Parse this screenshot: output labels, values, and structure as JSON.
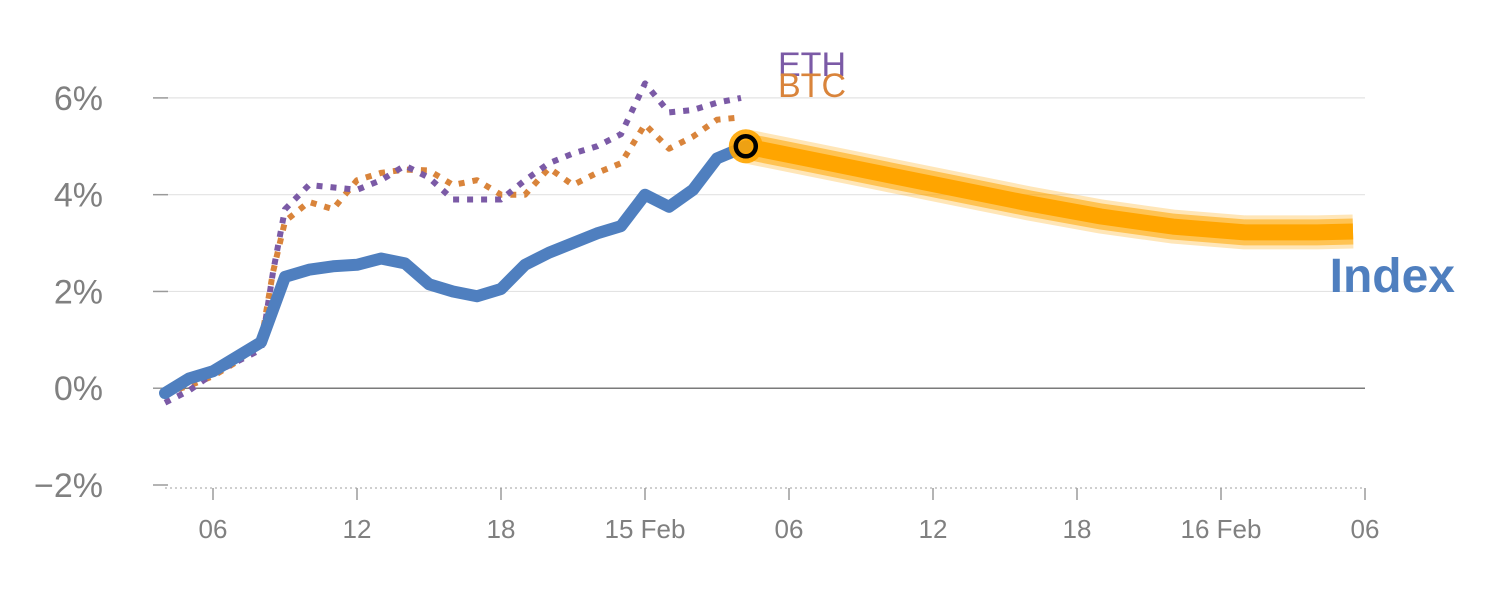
{
  "chart_data": {
    "type": "line",
    "title": "",
    "xlabel": "",
    "ylabel": "",
    "ylim": [
      -2,
      7.3
    ],
    "y_ticks": [
      {
        "value": -2,
        "label": "−2%"
      },
      {
        "value": 0,
        "label": "0%"
      },
      {
        "value": 2,
        "label": "2%"
      },
      {
        "value": 4,
        "label": "4%"
      },
      {
        "value": 6,
        "label": "6%"
      }
    ],
    "x_unit": "hours since 14 Feb 00:00",
    "xlim": [
      4,
      54
    ],
    "x_ticks": [
      {
        "value": 6,
        "label": "06"
      },
      {
        "value": 12,
        "label": "12"
      },
      {
        "value": 18,
        "label": "18"
      },
      {
        "value": 24,
        "label": "15 Feb"
      },
      {
        "value": 30,
        "label": "06"
      },
      {
        "value": 36,
        "label": "12"
      },
      {
        "value": 42,
        "label": "18"
      },
      {
        "value": 48,
        "label": "16 Feb"
      },
      {
        "value": 54,
        "label": "06"
      }
    ],
    "series": [
      {
        "name": "Index",
        "label": "Index",
        "color": "#4f7fbf",
        "style": "solid",
        "points": [
          [
            4.0,
            -0.1
          ],
          [
            5.0,
            0.2
          ],
          [
            6.0,
            0.35
          ],
          [
            7.0,
            0.65
          ],
          [
            8.0,
            0.95
          ],
          [
            9.0,
            2.3
          ],
          [
            10.0,
            2.45
          ],
          [
            11.0,
            2.52
          ],
          [
            12.0,
            2.55
          ],
          [
            13.0,
            2.68
          ],
          [
            14.0,
            2.58
          ],
          [
            15.0,
            2.15
          ],
          [
            16.0,
            2.0
          ],
          [
            17.0,
            1.9
          ],
          [
            18.0,
            2.05
          ],
          [
            19.0,
            2.55
          ],
          [
            20.0,
            2.8
          ],
          [
            21.0,
            3.0
          ],
          [
            22.0,
            3.2
          ],
          [
            23.0,
            3.35
          ],
          [
            24.0,
            4.0
          ],
          [
            25.0,
            3.75
          ],
          [
            26.0,
            4.1
          ],
          [
            27.0,
            4.75
          ],
          [
            28.2,
            5.0
          ]
        ]
      },
      {
        "name": "Forecast",
        "label": "",
        "color": "#ffa500",
        "style": "band",
        "points": [
          [
            28.2,
            5.0
          ],
          [
            31.0,
            4.72
          ],
          [
            34.0,
            4.42
          ],
          [
            37.0,
            4.12
          ],
          [
            40.0,
            3.82
          ],
          [
            43.0,
            3.55
          ],
          [
            46.0,
            3.34
          ],
          [
            49.0,
            3.22
          ],
          [
            52.0,
            3.22
          ],
          [
            53.5,
            3.24
          ]
        ]
      },
      {
        "name": "BTC",
        "label": "BTC",
        "color": "#d9843b",
        "style": "dotted",
        "points": [
          [
            4.0,
            -0.1
          ],
          [
            5.0,
            0.05
          ],
          [
            6.0,
            0.25
          ],
          [
            7.0,
            0.55
          ],
          [
            8.0,
            0.95
          ],
          [
            8.5,
            2.4
          ],
          [
            9.0,
            3.45
          ],
          [
            10.0,
            3.85
          ],
          [
            11.0,
            3.7
          ],
          [
            12.0,
            4.3
          ],
          [
            13.0,
            4.45
          ],
          [
            14.0,
            4.52
          ],
          [
            15.0,
            4.5
          ],
          [
            16.0,
            4.2
          ],
          [
            17.0,
            4.3
          ],
          [
            18.0,
            4.0
          ],
          [
            19.0,
            4.0
          ],
          [
            20.0,
            4.55
          ],
          [
            21.0,
            4.2
          ],
          [
            22.0,
            4.45
          ],
          [
            23.0,
            4.65
          ],
          [
            24.0,
            5.45
          ],
          [
            25.0,
            4.95
          ],
          [
            26.0,
            5.2
          ],
          [
            27.0,
            5.55
          ],
          [
            28.0,
            5.6
          ]
        ]
      },
      {
        "name": "ETH",
        "label": "ETH",
        "color": "#7b5aa6",
        "style": "dotted",
        "points": [
          [
            4.0,
            -0.3
          ],
          [
            5.0,
            -0.05
          ],
          [
            6.0,
            0.3
          ],
          [
            7.0,
            0.55
          ],
          [
            8.0,
            0.8
          ],
          [
            8.5,
            2.4
          ],
          [
            9.0,
            3.7
          ],
          [
            10.0,
            4.2
          ],
          [
            11.0,
            4.15
          ],
          [
            12.0,
            4.1
          ],
          [
            13.0,
            4.3
          ],
          [
            14.0,
            4.6
          ],
          [
            15.0,
            4.35
          ],
          [
            16.0,
            3.9
          ],
          [
            17.0,
            3.9
          ],
          [
            18.0,
            3.9
          ],
          [
            19.0,
            4.3
          ],
          [
            20.0,
            4.65
          ],
          [
            21.0,
            4.85
          ],
          [
            22.0,
            5.0
          ],
          [
            23.0,
            5.25
          ],
          [
            24.0,
            6.3
          ],
          [
            25.0,
            5.7
          ],
          [
            26.0,
            5.75
          ],
          [
            27.0,
            5.9
          ],
          [
            28.0,
            6.0
          ]
        ]
      }
    ],
    "marker": {
      "x": 28.2,
      "y": 5.0
    }
  }
}
